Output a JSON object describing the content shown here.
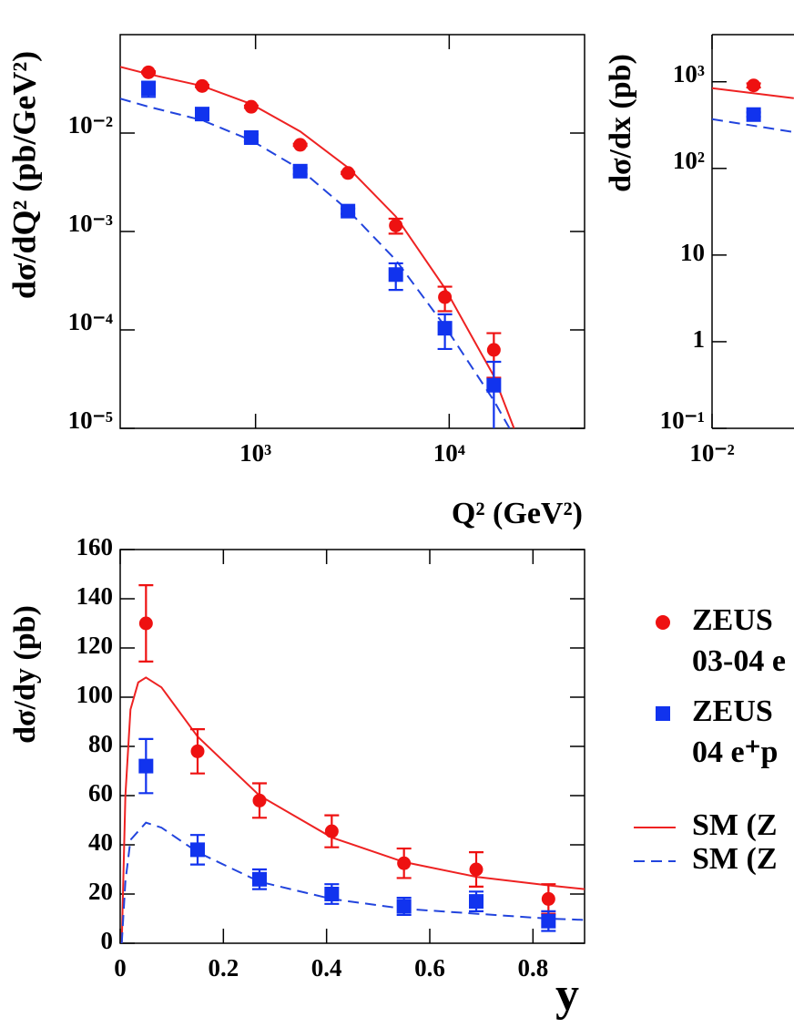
{
  "chart_data": [
    {
      "type": "scatter",
      "log_x": true,
      "log_y": true,
      "ylabel": "dσ/dQ² (pb/GeV²)",
      "xlabel": "Q² (GeV²)",
      "xlim": [
        200,
        50000
      ],
      "ylim": [
        1e-05,
        0.1
      ],
      "xticks": [
        {
          "value": 1000,
          "label": "10³"
        },
        {
          "value": 10000,
          "label": "10⁴"
        }
      ],
      "yticks": [
        {
          "value": 1e-05,
          "label": "10⁻⁵"
        },
        {
          "value": 0.0001,
          "label": "10⁻⁴"
        },
        {
          "value": 0.001,
          "label": "10⁻³"
        },
        {
          "value": 0.01,
          "label": "10⁻²"
        }
      ],
      "series": [
        {
          "kind": "line",
          "dashed": false,
          "color": "#ee2222",
          "x": [
            200,
            280,
            530,
            950,
            1700,
            3000,
            5300,
            9500,
            17000,
            21600
          ],
          "values": [
            0.0471,
            0.0397,
            0.0301,
            0.0197,
            0.0104,
            0.00447,
            0.00142,
            0.000265,
            3.39e-05,
            1e-05
          ]
        },
        {
          "kind": "line",
          "dashed": true,
          "color": "#2244dd",
          "x": [
            200,
            280,
            530,
            950,
            1700,
            3000,
            5300,
            9500,
            17000,
            20500
          ],
          "values": [
            0.0224,
            0.0185,
            0.0135,
            0.00844,
            0.00428,
            0.00165,
            0.000513,
            0.000109,
            1.91e-05,
            1e-05
          ]
        },
        {
          "kind": "points",
          "marker": "circle",
          "color": "#ee1111",
          "x": [
            280,
            530,
            950,
            1700,
            3000,
            5300,
            9500,
            17000
          ],
          "values": [
            0.0414,
            0.0301,
            0.0185,
            0.00759,
            0.00393,
            0.00115,
            0.000215,
            6.27e-05
          ],
          "errors": [
            0.001,
            0.0008,
            0.0005,
            0.0002,
            0.0001,
            0.0002,
            6e-05,
            3e-05
          ]
        },
        {
          "kind": "points",
          "marker": "square",
          "color": "#1133ee",
          "x": [
            280,
            530,
            950,
            1700,
            3000,
            5300,
            9500,
            17000
          ],
          "values": [
            0.0283,
            0.0156,
            0.00899,
            0.0041,
            0.00161,
            0.000365,
            0.000104,
            2.74e-05
          ],
          "errors": [
            0.005,
            0.0015,
            0.0007,
            0.0003,
            0.0001,
            0.00011,
            4e-05,
            2e-05
          ]
        }
      ]
    },
    {
      "type": "scatter",
      "log_x": true,
      "log_y": true,
      "ylabel": "dσ/dx (pb)",
      "xlim": [
        0.01,
        1
      ],
      "ylim": [
        0.1,
        3500
      ],
      "xticks": [
        {
          "value": 0.01,
          "label": "10⁻²"
        }
      ],
      "yticks": [
        {
          "value": 0.1,
          "label": "10⁻¹"
        },
        1,
        10,
        {
          "value": 100,
          "label": "10²"
        },
        {
          "value": 1000,
          "label": "10³"
        }
      ],
      "series": [
        {
          "kind": "line",
          "dashed": false,
          "color": "#ee2222",
          "x": [
            0.01,
            0.0225
          ],
          "values": [
            843,
            646
          ]
        },
        {
          "kind": "line",
          "dashed": true,
          "color": "#2244dd",
          "x": [
            0.01,
            0.0225
          ],
          "values": [
            370,
            263
          ]
        },
        {
          "kind": "points",
          "marker": "circle",
          "color": "#ee1111",
          "x": [
            0.0151
          ],
          "values": [
            908
          ],
          "errors": [
            50
          ]
        },
        {
          "kind": "points",
          "marker": "square",
          "color": "#1133ee",
          "x": [
            0.0151
          ],
          "values": [
            418
          ],
          "errors": [
            25
          ]
        }
      ]
    },
    {
      "type": "scatter",
      "log_x": false,
      "log_y": false,
      "ylabel": "dσ/dy (pb)",
      "xlabel": "y",
      "xlim": [
        0,
        0.9
      ],
      "ylim": [
        0,
        160
      ],
      "xticks": [
        0,
        0.2,
        0.4,
        0.6,
        0.8
      ],
      "yticks": [
        0,
        20,
        40,
        60,
        80,
        100,
        120,
        140,
        160
      ],
      "series": [
        {
          "kind": "line",
          "dashed": false,
          "color": "#ee2222",
          "x": [
            0.003,
            0.01,
            0.02,
            0.035,
            0.05,
            0.08,
            0.15,
            0.27,
            0.41,
            0.55,
            0.69,
            0.83,
            0.9
          ],
          "values": [
            0,
            60,
            95,
            106,
            108,
            104,
            84,
            60,
            43,
            33,
            27,
            23.5,
            22
          ]
        },
        {
          "kind": "line",
          "dashed": true,
          "color": "#2244dd",
          "x": [
            0.003,
            0.01,
            0.02,
            0.05,
            0.08,
            0.15,
            0.27,
            0.41,
            0.55,
            0.69,
            0.83,
            0.9
          ],
          "values": [
            0,
            25,
            42,
            49,
            47,
            37,
            25,
            18,
            14,
            12,
            10,
            9.5
          ]
        },
        {
          "kind": "points",
          "marker": "circle",
          "color": "#ee1111",
          "x": [
            0.05,
            0.15,
            0.27,
            0.41,
            0.55,
            0.69,
            0.83
          ],
          "values": [
            130,
            78,
            58,
            45.5,
            32.5,
            30,
            18
          ],
          "errors": [
            15.5,
            9,
            7,
            6.5,
            6,
            7,
            6
          ]
        },
        {
          "kind": "points",
          "marker": "square",
          "color": "#1133ee",
          "x": [
            0.05,
            0.15,
            0.27,
            0.41,
            0.55,
            0.69,
            0.83
          ],
          "values": [
            72,
            38,
            26,
            20,
            15,
            17,
            9
          ],
          "errors": [
            11,
            6,
            4,
            4,
            3.5,
            4,
            4
          ]
        }
      ]
    }
  ],
  "legend": {
    "entries": [
      {
        "lines": [
          "ZEUS",
          "03-04 e"
        ],
        "marker": "circle",
        "color": "#ee1111"
      },
      {
        "lines": [
          "ZEUS",
          "04 e⁺p"
        ],
        "marker": "square",
        "color": "#1133ee"
      },
      {
        "lines": [
          "SM (Z"
        ],
        "dashed": false,
        "color": "#ee2222"
      },
      {
        "lines": [
          "SM (Z"
        ],
        "dashed": true,
        "color": "#2244dd"
      }
    ]
  }
}
